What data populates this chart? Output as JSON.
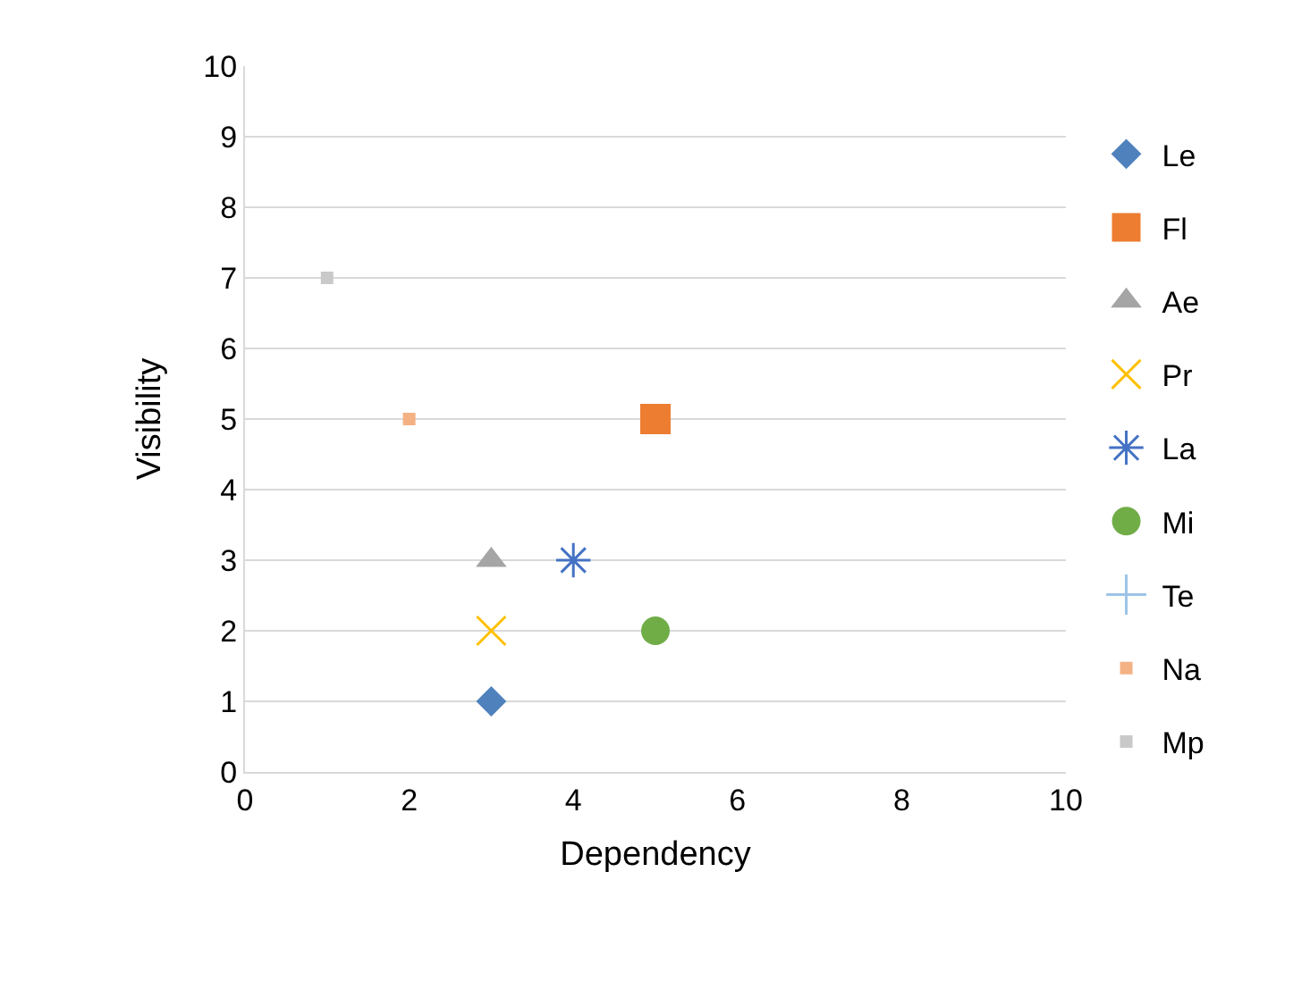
{
  "chart_data": {
    "type": "scatter",
    "xlabel": "Dependency",
    "ylabel": "Visibility",
    "xlim": [
      0,
      10
    ],
    "ylim": [
      0,
      10
    ],
    "xticks": [
      0,
      2,
      4,
      6,
      8,
      10
    ],
    "yticks": [
      0,
      1,
      2,
      3,
      4,
      5,
      6,
      7,
      8,
      9,
      10
    ],
    "grid": "y",
    "legend": "right",
    "series": [
      {
        "name": "Le",
        "color": "#4f81bd",
        "marker": "diamond",
        "x": [
          3
        ],
        "values": [
          1
        ]
      },
      {
        "name": "Fl",
        "color": "#ed7d31",
        "marker": "square",
        "x": [
          5
        ],
        "values": [
          5
        ]
      },
      {
        "name": "Ae",
        "color": "#a5a5a5",
        "marker": "triangle",
        "x": [
          3
        ],
        "values": [
          3
        ]
      },
      {
        "name": "Pr",
        "color": "#ffc000",
        "marker": "cross",
        "x": [
          3
        ],
        "values": [
          2
        ]
      },
      {
        "name": "La",
        "color": "#4472c4",
        "marker": "cross",
        "x": [
          4
        ],
        "values": [
          3
        ]
      },
      {
        "name": "Mi",
        "color": "#70ad47",
        "marker": "circle",
        "x": [
          5
        ],
        "values": [
          2
        ]
      },
      {
        "name": "Te",
        "color": "#9dc3e6",
        "marker": "cross",
        "x": [
          null
        ],
        "values": [
          null
        ]
      },
      {
        "name": "Na",
        "color": "#f4b183",
        "marker": "square",
        "x": [
          2
        ],
        "values": [
          5
        ]
      },
      {
        "name": "Mp",
        "color": "#c9c9c9",
        "marker": "square",
        "x": [
          1
        ],
        "values": [
          7
        ]
      }
    ]
  }
}
